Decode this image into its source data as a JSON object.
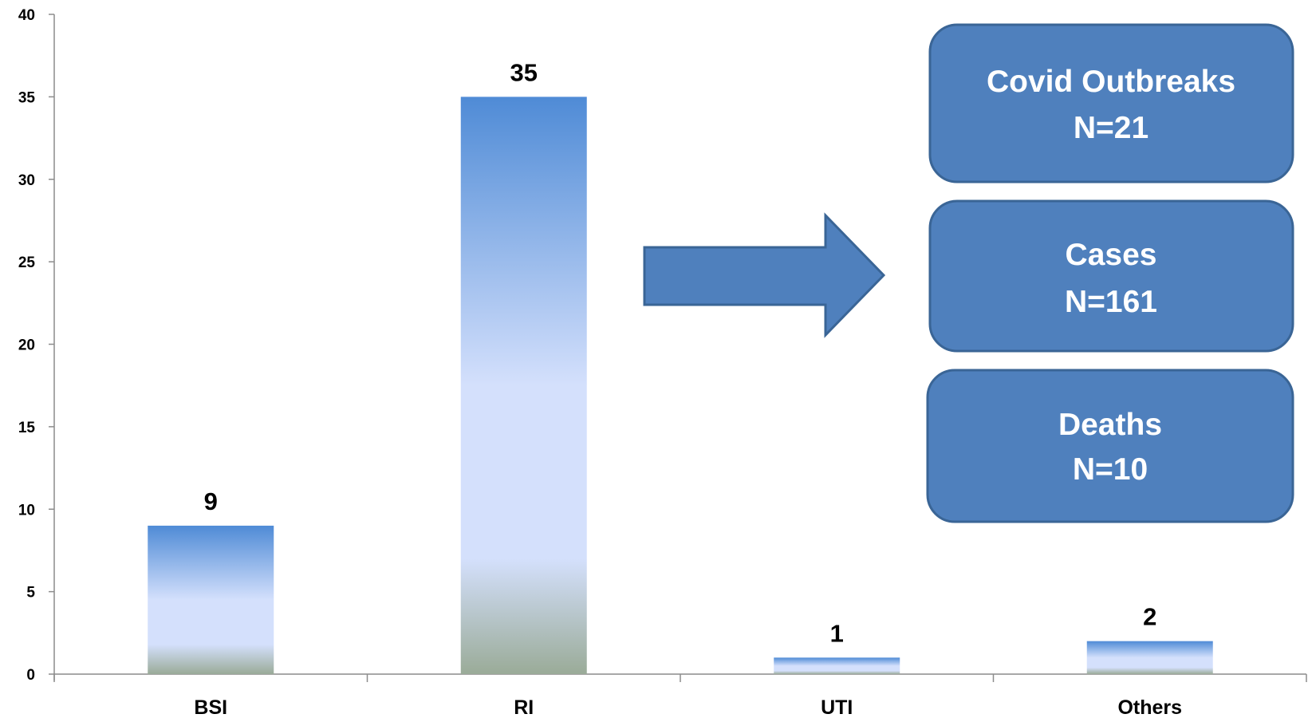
{
  "chart_data": {
    "type": "bar",
    "categories": [
      "BSI",
      "RI",
      "UTI",
      "Others"
    ],
    "values": [
      9,
      35,
      1,
      2
    ],
    "data_labels": [
      "9",
      "35",
      "1",
      "2"
    ],
    "ylim": [
      0,
      40
    ],
    "yticks": [
      0,
      5,
      10,
      15,
      20,
      25,
      30,
      35,
      40
    ],
    "grid": false,
    "legend": "none",
    "colors": {
      "bar_top": "#4f8bd6",
      "bar_mid": "#d4e0fc",
      "bar_bottom": "#9aab98",
      "box_fill": "#4f80bd",
      "box_border": "#3a6596",
      "arrow_fill": "#4f80bd"
    }
  },
  "annotations": {
    "boxes": [
      {
        "title": "Covid Outbreaks",
        "value": "N=21"
      },
      {
        "title": "Cases",
        "value": "N=161"
      },
      {
        "title": "Deaths",
        "value": "N=10"
      }
    ]
  }
}
